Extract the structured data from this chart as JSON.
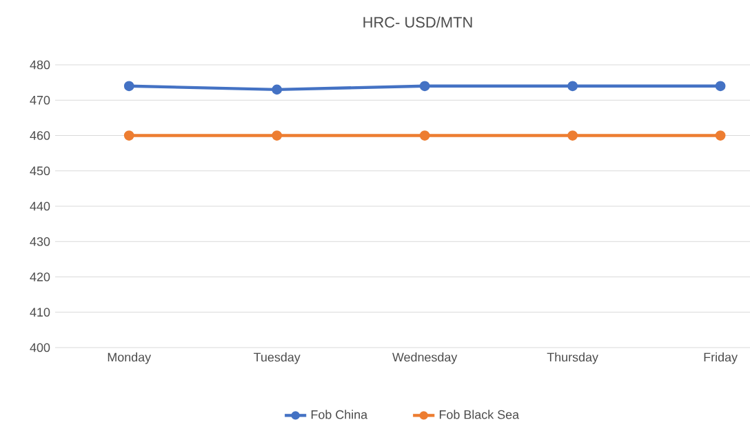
{
  "chart_data": {
    "type": "line",
    "title": "HRC- USD/MTN",
    "categories": [
      "Monday",
      "Tuesday",
      "Wednesday",
      "Thursday",
      "Friday"
    ],
    "series": [
      {
        "name": "Fob China",
        "color": "#4472c4",
        "values": [
          474,
          473,
          474,
          474,
          474
        ]
      },
      {
        "name": "Fob Black Sea",
        "color": "#ed7d31",
        "values": [
          460,
          460,
          460,
          460,
          460
        ]
      }
    ],
    "ylim": [
      400,
      480
    ],
    "yticks": [
      400,
      410,
      420,
      430,
      440,
      450,
      460,
      470,
      480
    ],
    "grid": "y",
    "legend": "bottom",
    "marker": "circle",
    "line_style": "solid"
  }
}
